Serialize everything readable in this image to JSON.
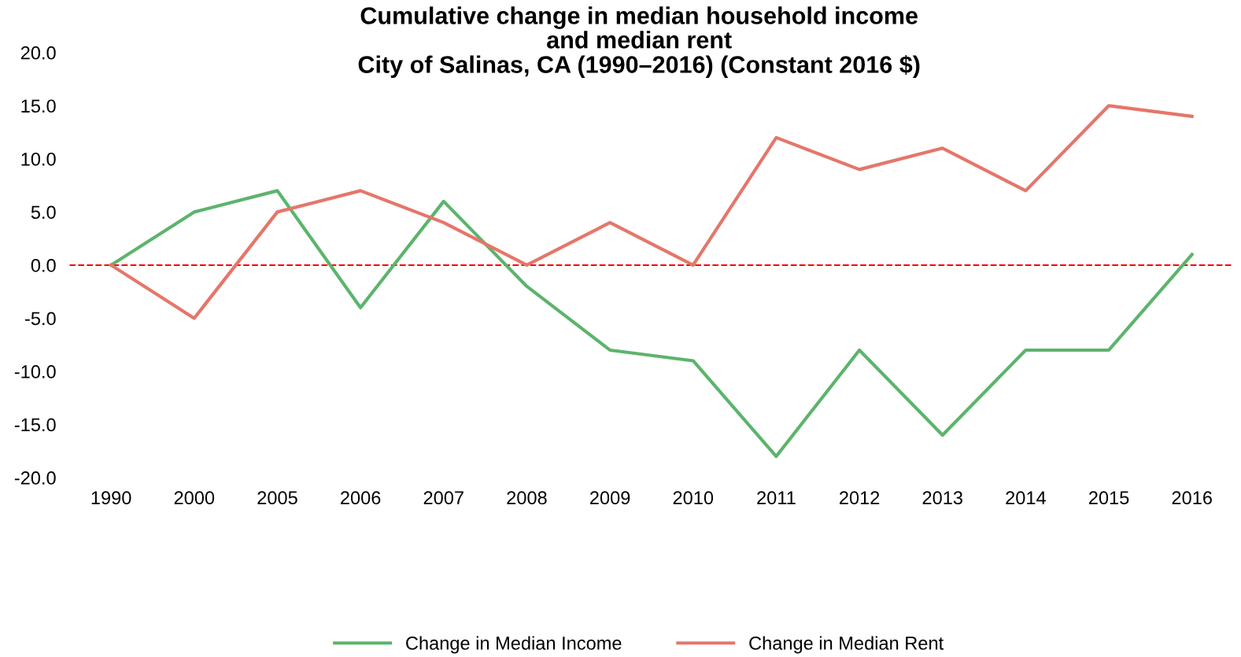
{
  "chart_data": {
    "type": "line",
    "title": "Cumulative change in median household income\nand median rent\nCity of Salinas, CA (1990–2016) (Constant 2016 $)",
    "categories": [
      "1990",
      "2000",
      "2005",
      "2006",
      "2007",
      "2008",
      "2009",
      "2010",
      "2011",
      "2012",
      "2013",
      "2014",
      "2015",
      "2016"
    ],
    "series": [
      {
        "name": "Change in Median Income",
        "color": "#5cb46c",
        "values": [
          0,
          5,
          7,
          -4,
          6,
          -2,
          -8,
          -9,
          -18,
          -8,
          -16,
          -8,
          -8,
          1
        ]
      },
      {
        "name": "Change in Median Rent",
        "color": "#e5766a",
        "values": [
          0,
          -5,
          5,
          7,
          4,
          0,
          4,
          0,
          12,
          9,
          11,
          7,
          15,
          14
        ]
      }
    ],
    "ylim": [
      -20,
      20
    ],
    "yticks": [
      {
        "value": -20,
        "label": "-20.0"
      },
      {
        "value": -15,
        "label": "-15.0"
      },
      {
        "value": -10,
        "label": "-10.0"
      },
      {
        "value": -5,
        "label": "-5.0"
      },
      {
        "value": 0,
        "label": "0.0"
      },
      {
        "value": 5,
        "label": "5.0"
      },
      {
        "value": 10,
        "label": "10.0"
      },
      {
        "value": 15,
        "label": "15.0"
      },
      {
        "value": 20,
        "label": "20.0"
      }
    ],
    "ref_lines": [
      {
        "axis": "y",
        "value": 0,
        "color": "#ff0000",
        "line_style": "dashed"
      }
    ],
    "grid": false,
    "legend": "bottom",
    "marker": "none",
    "line_style": "solid"
  }
}
